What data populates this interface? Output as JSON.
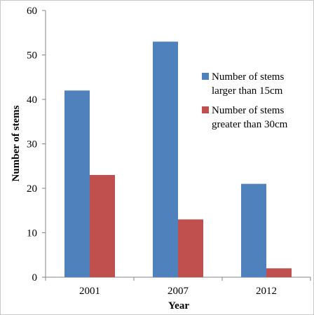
{
  "chart_data": {
    "type": "bar",
    "categories": [
      "2001",
      "2007",
      "2012"
    ],
    "series": [
      {
        "name": "Number of stems larger than 15cm",
        "name_lines": [
          "Number of stems",
          "larger than 15cm"
        ],
        "values": [
          42,
          53,
          21
        ],
        "color": "#4f81bd"
      },
      {
        "name": "Number of stems greater than 30cm",
        "name_lines": [
          "Number of stems",
          "greater than 30cm"
        ],
        "values": [
          23,
          13,
          2
        ],
        "color": "#c0504d"
      }
    ],
    "xlabel": "Year",
    "ylabel": "Number of stems",
    "ylim": [
      0,
      60
    ],
    "yticks": [
      0,
      10,
      20,
      30,
      40,
      50,
      60
    ],
    "grid": false,
    "legend_position": "right"
  }
}
